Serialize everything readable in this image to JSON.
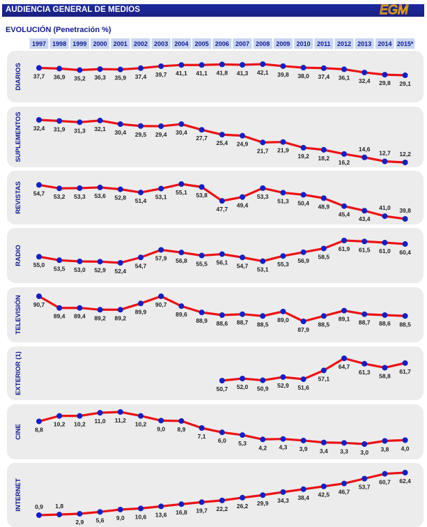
{
  "header": {
    "title": "AUDIENCIA GENERAL DE MEDIOS",
    "logo_text": "EGM",
    "subtitle": "EVOLUCIÓN    (Penetración %)"
  },
  "colors": {
    "header_bg": "#1c2aa0",
    "line": "#ee1111",
    "marker": "#1020c8",
    "year_box": "#c8d6f2",
    "panel_bg": "#ececec"
  },
  "chart_data": {
    "type": "line",
    "categories": [
      "1997",
      "1998",
      "1999",
      "2000",
      "2001",
      "2002",
      "2003",
      "2004",
      "2005",
      "2006",
      "2007",
      "2008",
      "2009",
      "2010",
      "2011",
      "2012",
      "2013",
      "2014",
      "2015*"
    ],
    "series": [
      {
        "name": "DIARIOS",
        "values": [
          37.7,
          36.9,
          35.2,
          36.3,
          35.9,
          37.4,
          39.7,
          41.1,
          41.1,
          41.8,
          41.3,
          42.1,
          39.8,
          38.0,
          37.4,
          36.1,
          32.4,
          29.8,
          29.1
        ],
        "labels": [
          "37,7",
          "36,9",
          "35,2",
          "36,3",
          "35,9",
          "37,4",
          "39,7",
          "41,1",
          "41,1",
          "41,8",
          "41,3",
          "42,1",
          "39,8",
          "38,0",
          "37,4",
          "36,1",
          "32,4",
          "29,8",
          "29,1"
        ]
      },
      {
        "name": "SUPLEMENTOS",
        "values": [
          32.4,
          31.9,
          31.3,
          32.1,
          30.4,
          29.5,
          29.4,
          30.4,
          27.7,
          25.4,
          24.9,
          21.7,
          21.9,
          19.2,
          18.2,
          16.2,
          14.6,
          12.7,
          12.2
        ],
        "labels": [
          "32,4",
          "31,9",
          "31,3",
          "32,1",
          "30,4",
          "29,5",
          "29,4",
          "30,4",
          "27,7",
          "25,4",
          "24,9",
          "21,7",
          "21,9",
          "19,2",
          "18,2",
          "16,2",
          "14,6",
          "12,7",
          "12,2"
        ]
      },
      {
        "name": "REVISTAS",
        "values": [
          54.7,
          53.2,
          53.3,
          53.6,
          52.8,
          51.4,
          53.1,
          55.1,
          53.8,
          47.7,
          49.4,
          53.3,
          51.3,
          50.4,
          48.9,
          45.4,
          43.4,
          41.0,
          39.8
        ],
        "labels": [
          "54,7",
          "53,2",
          "53,3",
          "53,6",
          "52,8",
          "51,4",
          "53,1",
          "55,1",
          "53,8",
          "47,7",
          "49,4",
          "53,3",
          "51,3",
          "50,4",
          "48,9",
          "45,4",
          "43,4",
          "41,0",
          "39,8"
        ]
      },
      {
        "name": "RADIO",
        "values": [
          55.0,
          53.5,
          53.0,
          52.9,
          52.4,
          54.7,
          57.9,
          56.8,
          55.5,
          56.1,
          54.7,
          53.1,
          55.3,
          56.9,
          58.5,
          61.9,
          61.5,
          61.0,
          60.4
        ],
        "labels": [
          "55,0",
          "53,5",
          "53,0",
          "52,9",
          "52,4",
          "54,7",
          "57,9",
          "56,8",
          "55,5",
          "56,1",
          "54,7",
          "53,1",
          "55,3",
          "56,9",
          "58,5",
          "61,9",
          "61,5",
          "61,0",
          "60,4"
        ]
      },
      {
        "name": "TELEVISIÓN",
        "values": [
          90.7,
          89.4,
          89.4,
          89.2,
          89.2,
          89.9,
          90.7,
          89.6,
          88.9,
          88.6,
          88.7,
          88.5,
          89.0,
          87.9,
          88.5,
          89.1,
          88.7,
          88.6,
          88.5
        ],
        "labels": [
          "90,7",
          "89,4",
          "89,4",
          "89,2",
          "89,2",
          "89,9",
          "90,7",
          "89,6",
          "88,9",
          "88,6",
          "88,7",
          "88,5",
          "89,0",
          "87,9",
          "88,5",
          "89,1",
          "88,7",
          "88,6",
          "88,5"
        ]
      },
      {
        "name": "EXTERIOR (1)",
        "values": [
          null,
          null,
          null,
          null,
          null,
          null,
          null,
          null,
          null,
          50.7,
          52.0,
          50.9,
          52.9,
          51.6,
          57.1,
          64.7,
          61.3,
          58.8,
          61.7
        ],
        "labels": [
          null,
          null,
          null,
          null,
          null,
          null,
          null,
          null,
          null,
          "50,7",
          "52,0",
          "50,9",
          "52,9",
          "51,6",
          "57,1",
          "64,7",
          "61,3",
          "58,8",
          "61,7"
        ]
      },
      {
        "name": "CINE",
        "values": [
          8.8,
          10.2,
          10.2,
          11.0,
          11.2,
          10.2,
          9.0,
          8.9,
          7.1,
          6.0,
          5.3,
          4.2,
          4.3,
          3.9,
          3.4,
          3.3,
          3.0,
          3.8,
          4.0
        ],
        "labels": [
          "8,8",
          "10,2",
          "10,2",
          "11,0",
          "11,2",
          "10,2",
          "9,0",
          "8,9",
          "7,1",
          "6,0",
          "5,3",
          "4,2",
          "4,3",
          "3,9",
          "3,4",
          "3,3",
          "3,0",
          "3,8",
          "4,0"
        ]
      },
      {
        "name": "INTERNET",
        "values": [
          0.9,
          1.8,
          2.9,
          5.6,
          9.0,
          10.6,
          13.6,
          16.8,
          19.7,
          22.2,
          26.2,
          29.9,
          34.3,
          38.4,
          42.5,
          46.7,
          53.7,
          60.7,
          62.4
        ],
        "labels": [
          "0,9",
          "1,8",
          "2,9",
          "5,6",
          "9,0",
          "10,6",
          "13,6",
          "16,8",
          "19,7",
          "22,2",
          "26,2",
          "29,9",
          "34,3",
          "38,4",
          "42,5",
          "46,7",
          "53,7",
          "60,7",
          "62,4"
        ]
      }
    ]
  }
}
